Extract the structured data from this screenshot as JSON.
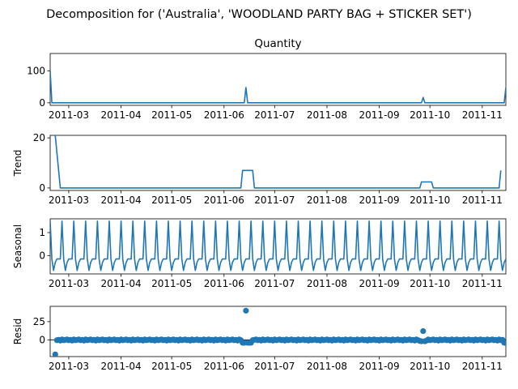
{
  "figure": {
    "suptitle": "Decomposition for ('Australia', 'WOODLAND PARTY BAG + STICKER SET')"
  },
  "colors": {
    "series": "#1f77b4",
    "axis": "#000000",
    "zero_line": "#000000"
  },
  "chart_data": [
    {
      "type": "line",
      "title": "Quantity",
      "ylabel": "",
      "xlim": [
        "2011-02-18",
        "2011-11-15"
      ],
      "ylim": [
        -8,
        155
      ],
      "yticks": [
        0,
        100
      ],
      "xticks": [
        "2011-03-01",
        "2011-04-01",
        "2011-05-01",
        "2011-06-01",
        "2011-07-01",
        "2011-08-01",
        "2011-09-01",
        "2011-10-01",
        "2011-11-01"
      ],
      "xtick_labels": [
        "2011-03",
        "2011-04",
        "2011-05",
        "2011-06",
        "2011-07",
        "2011-08",
        "2011-09",
        "2011-10",
        "2011-11"
      ],
      "x": [
        "2011-02-18",
        "2011-02-19",
        "2011-06-13",
        "2011-06-14",
        "2011-06-15",
        "2011-09-26",
        "2011-09-27",
        "2011-09-28",
        "2011-11-13",
        "2011-11-14",
        "2011-11-15"
      ],
      "y": [
        100,
        0,
        0,
        48,
        0,
        0,
        17,
        0,
        0,
        0,
        48
      ]
    },
    {
      "type": "line",
      "title": "",
      "ylabel": "Trend",
      "xlim": [
        "2011-02-18",
        "2011-11-15"
      ],
      "ylim": [
        -1,
        21
      ],
      "yticks": [
        0,
        20
      ],
      "xtick_labels": [
        "2011-03",
        "2011-04",
        "2011-05",
        "2011-06",
        "2011-07",
        "2011-08",
        "2011-09",
        "2011-10",
        "2011-11"
      ],
      "x": [
        "2011-02-21",
        "2011-02-24",
        "2011-06-11",
        "2011-06-12",
        "2011-06-18",
        "2011-06-19",
        "2011-09-25",
        "2011-09-26",
        "2011-10-02",
        "2011-10-03",
        "2011-11-11",
        "2011-11-12"
      ],
      "y": [
        21,
        0,
        0,
        7,
        7,
        0,
        0,
        2.4,
        2.4,
        0,
        0,
        7
      ]
    },
    {
      "type": "line",
      "title": "",
      "ylabel": "Seasonal",
      "xlim": [
        "2011-02-18",
        "2011-11-15"
      ],
      "ylim": [
        -0.8,
        1.6
      ],
      "yticks": [
        0,
        1
      ],
      "xtick_labels": [
        "2011-03",
        "2011-04",
        "2011-05",
        "2011-06",
        "2011-07",
        "2011-08",
        "2011-09",
        "2011-10",
        "2011-11"
      ],
      "start": "2011-02-18",
      "end": "2011-11-15",
      "weekly_pattern": [
        1.5,
        -0.15,
        -0.65,
        -0.3,
        -0.15,
        -0.15,
        -0.15
      ]
    },
    {
      "type": "scatter",
      "title": "",
      "ylabel": "Resid",
      "xlim": [
        "2011-02-18",
        "2011-11-15"
      ],
      "ylim": [
        -23,
        46
      ],
      "yticks": [
        0,
        25
      ],
      "xtick_labels": [
        "2011-03",
        "2011-04",
        "2011-05",
        "2011-06",
        "2011-07",
        "2011-08",
        "2011-09",
        "2011-10",
        "2011-11"
      ],
      "start": "2011-02-21",
      "end": "2011-11-14",
      "baseline": [
        0.5,
        -0.5,
        0,
        -1,
        0.5,
        -0.5,
        0
      ],
      "outliers": [
        {
          "x": "2011-02-21",
          "y": -20
        },
        {
          "x": "2011-06-12",
          "y": -4
        },
        {
          "x": "2011-06-13",
          "y": -4
        },
        {
          "x": "2011-06-14",
          "y": 40
        },
        {
          "x": "2011-06-15",
          "y": -4
        },
        {
          "x": "2011-06-16",
          "y": -4
        },
        {
          "x": "2011-06-17",
          "y": -4
        },
        {
          "x": "2011-09-25",
          "y": -1.5
        },
        {
          "x": "2011-09-26",
          "y": -2
        },
        {
          "x": "2011-09-27",
          "y": 12
        },
        {
          "x": "2011-09-28",
          "y": -2
        },
        {
          "x": "2011-11-14",
          "y": -4
        }
      ]
    }
  ]
}
